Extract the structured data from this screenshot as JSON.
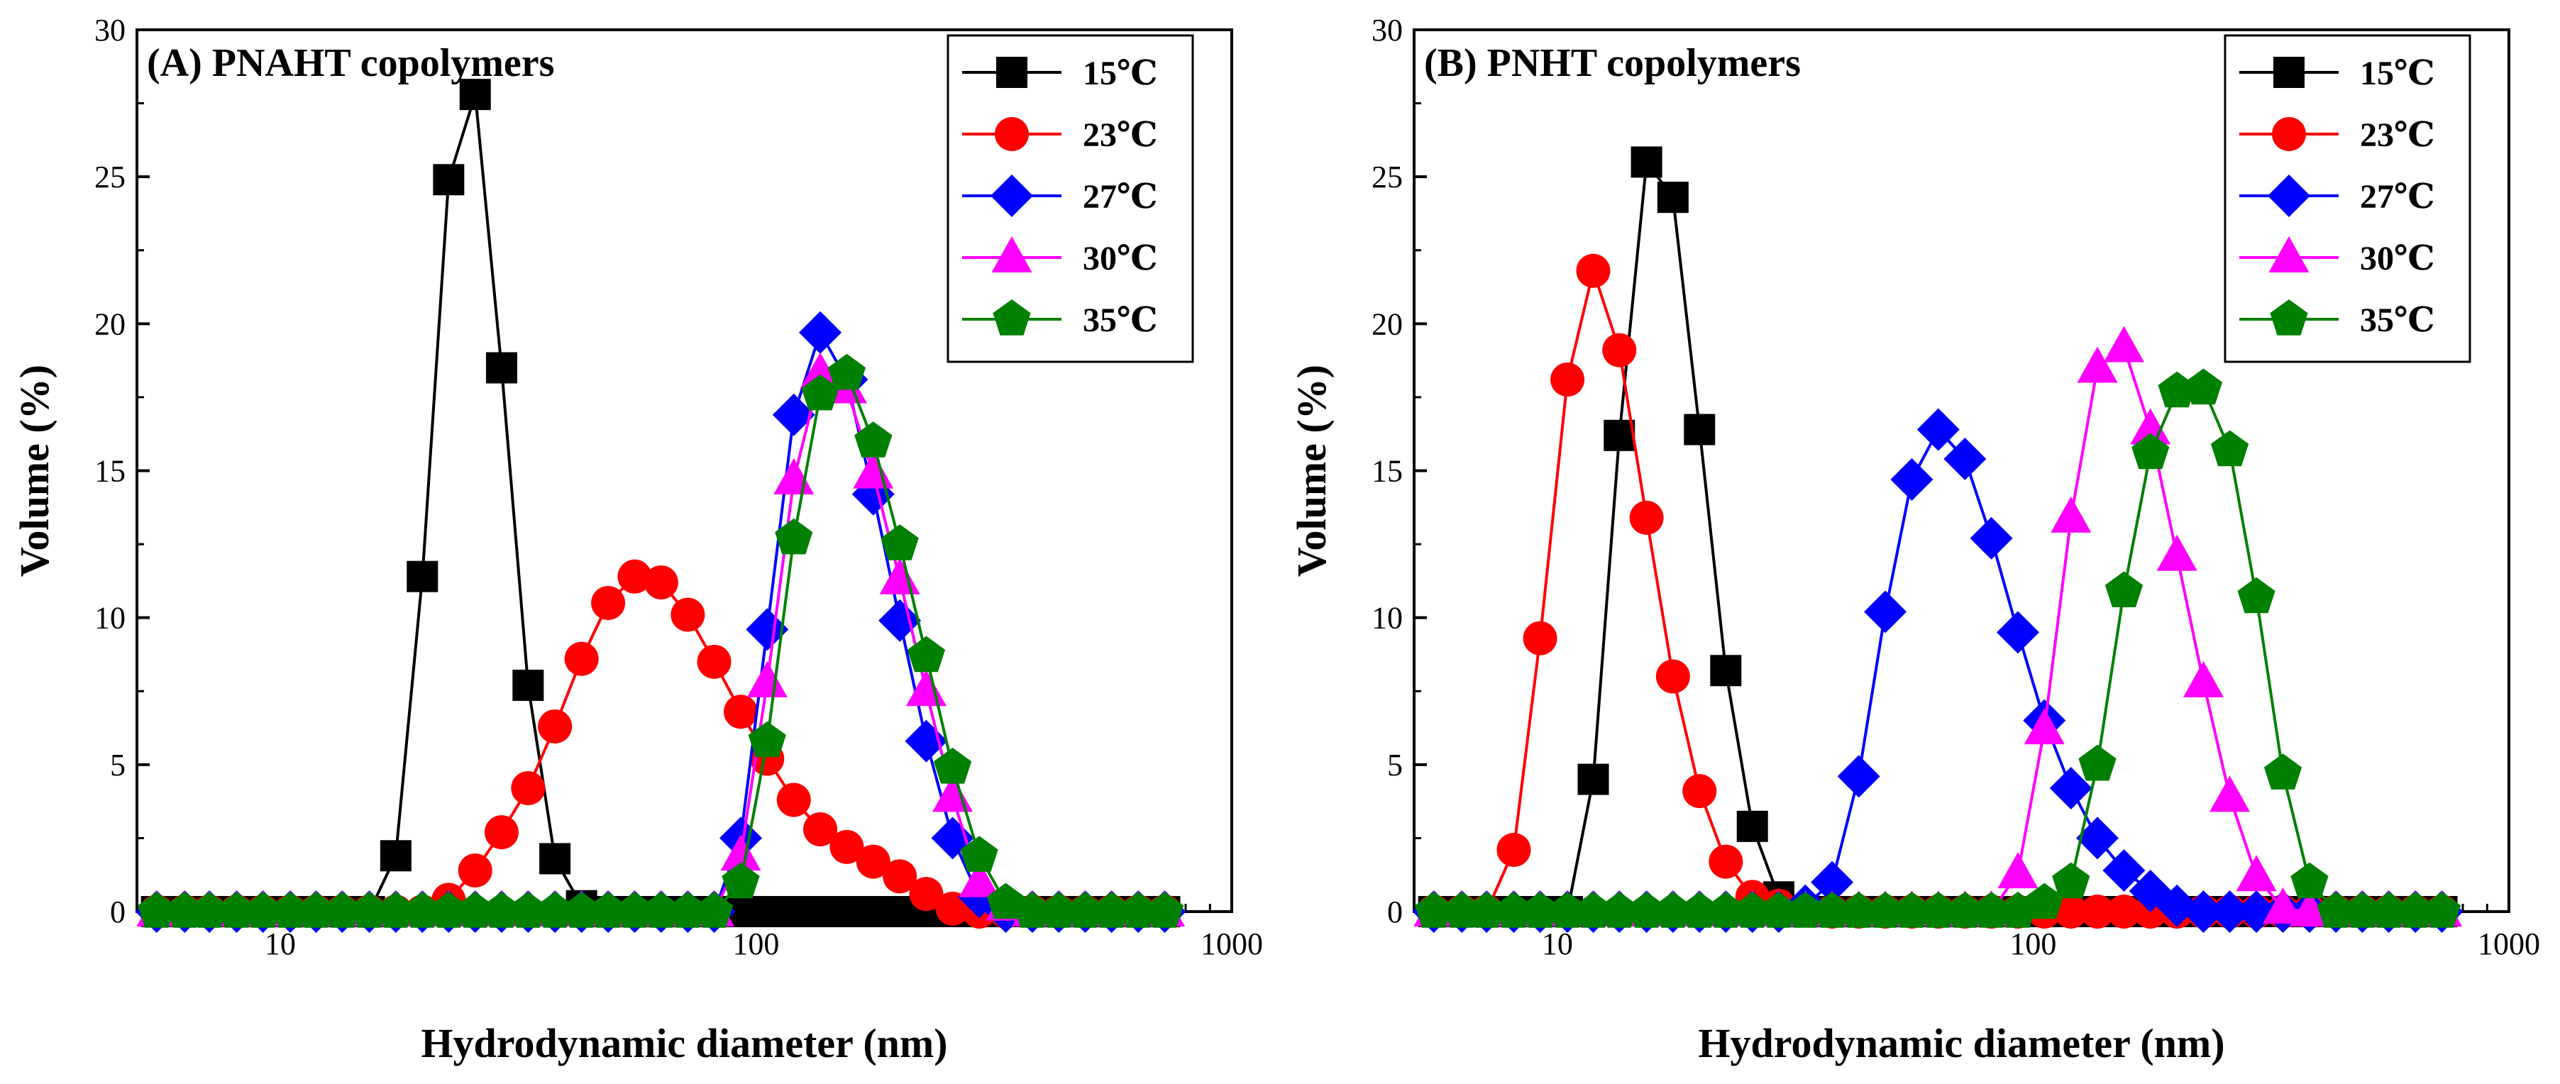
{
  "chart_data": [
    {
      "type": "line",
      "title": "(A) PNAHT copolymers",
      "xlabel": "Hydrodynamic diameter (nm)",
      "ylabel": "Volume (%)",
      "xscale": "log",
      "xlim": [
        5,
        1000
      ],
      "ylim": [
        0,
        30
      ],
      "xticks": [
        "10",
        "100",
        "1000"
      ],
      "yticks": [
        "0",
        "5",
        "10",
        "15",
        "20",
        "25",
        "30"
      ],
      "legend_position": "top-right",
      "series": [
        {
          "name": "15℃",
          "color": "#000000",
          "marker": "square",
          "x": [
            5.5,
            6.3,
            7.1,
            8.1,
            9.2,
            10.5,
            11.9,
            13.5,
            15.4,
            17.5,
            19.9,
            22.6,
            25.7,
            29.2,
            33.2,
            37.8,
            43,
            48.9,
            55.6,
            63.2,
            71.9,
            81.7,
            92.9,
            105.6,
            120.1,
            136.5,
            155.2,
            176.4,
            200.6,
            228,
            259,
            294.6,
            335,
            381,
            433,
            492,
            559,
            636,
            723
          ],
          "y": [
            0,
            0,
            0,
            0,
            0,
            0,
            0,
            0,
            0,
            1.9,
            11.4,
            24.9,
            27.8,
            18.5,
            7.7,
            1.8,
            0.2,
            0,
            0,
            0,
            0,
            0,
            0,
            0,
            0,
            0,
            0,
            0,
            0,
            0,
            0,
            0,
            0,
            0,
            0,
            0,
            0,
            0,
            0
          ]
        },
        {
          "name": "23℃",
          "color": "#ff0000",
          "marker": "circle",
          "x": [
            5.5,
            6.3,
            7.1,
            8.1,
            9.2,
            10.5,
            11.9,
            13.5,
            15.4,
            17.5,
            19.9,
            22.6,
            25.7,
            29.2,
            33.2,
            37.8,
            43,
            48.9,
            55.6,
            63.2,
            71.9,
            81.7,
            92.9,
            105.6,
            120.1,
            136.5,
            155.2,
            176.4,
            200.6,
            228,
            259,
            294.6,
            335,
            381,
            433,
            492,
            559,
            636,
            723
          ],
          "y": [
            0,
            0,
            0,
            0,
            0,
            0,
            0,
            0,
            0,
            0,
            0,
            0.4,
            1.4,
            2.7,
            4.2,
            6.3,
            8.6,
            10.5,
            11.4,
            11.2,
            10.1,
            8.5,
            6.8,
            5.2,
            3.8,
            2.8,
            2.2,
            1.7,
            1.2,
            0.6,
            0.1,
            0,
            0,
            0,
            0,
            0,
            0,
            0,
            0
          ]
        },
        {
          "name": "27℃",
          "color": "#0000ff",
          "marker": "diamond",
          "x": [
            5.5,
            6.3,
            7.1,
            8.1,
            9.2,
            10.5,
            11.9,
            13.5,
            15.4,
            17.5,
            19.9,
            22.6,
            25.7,
            29.2,
            33.2,
            37.8,
            43,
            48.9,
            55.6,
            63.2,
            71.9,
            81.7,
            92.9,
            105.6,
            120.1,
            136.5,
            155.2,
            176.4,
            200.6,
            228,
            259,
            294.6,
            335,
            381,
            433,
            492,
            559,
            636,
            723
          ],
          "y": [
            0,
            0,
            0,
            0,
            0,
            0,
            0,
            0,
            0,
            0,
            0,
            0,
            0,
            0,
            0,
            0,
            0,
            0,
            0,
            0,
            0,
            0,
            2.5,
            9.6,
            16.9,
            19.7,
            18.1,
            14.2,
            9.9,
            5.8,
            2.5,
            0.5,
            0,
            0,
            0,
            0,
            0,
            0,
            0
          ]
        },
        {
          "name": "30℃",
          "color": "#ff00ff",
          "marker": "triangle",
          "x": [
            5.5,
            6.3,
            7.1,
            8.1,
            9.2,
            10.5,
            11.9,
            13.5,
            15.4,
            17.5,
            19.9,
            22.6,
            25.7,
            29.2,
            33.2,
            37.8,
            43,
            48.9,
            55.6,
            63.2,
            71.9,
            81.7,
            92.9,
            105.6,
            120.1,
            136.5,
            155.2,
            176.4,
            200.6,
            228,
            259,
            294.6,
            335,
            381,
            433,
            492,
            559,
            636,
            723
          ],
          "y": [
            0,
            0,
            0,
            0,
            0,
            0,
            0,
            0,
            0,
            0,
            0,
            0,
            0,
            0,
            0,
            0,
            0,
            0,
            0,
            0,
            0,
            0,
            1.9,
            7.8,
            14.7,
            18.3,
            17.8,
            14.9,
            11.3,
            7.5,
            3.9,
            1,
            0.2,
            0,
            0,
            0,
            0,
            0,
            0
          ]
        },
        {
          "name": "35℃",
          "color": "#008000",
          "marker": "pentagon",
          "x": [
            5.5,
            6.3,
            7.1,
            8.1,
            9.2,
            10.5,
            11.9,
            13.5,
            15.4,
            17.5,
            19.9,
            22.6,
            25.7,
            29.2,
            33.2,
            37.8,
            43,
            48.9,
            55.6,
            63.2,
            71.9,
            81.7,
            92.9,
            105.6,
            120.1,
            136.5,
            155.2,
            176.4,
            200.6,
            228,
            259,
            294.6,
            335,
            381,
            433,
            492,
            559,
            636,
            723
          ],
          "y": [
            0,
            0,
            0,
            0,
            0,
            0,
            0,
            0,
            0,
            0,
            0,
            0,
            0,
            0,
            0,
            0,
            0,
            0,
            0,
            0,
            0,
            0,
            1,
            5.8,
            12.7,
            17.6,
            18.3,
            16,
            12.5,
            8.7,
            4.9,
            1.9,
            0.3,
            0,
            0,
            0,
            0,
            0,
            0
          ]
        }
      ]
    },
    {
      "type": "line",
      "title": "(B) PNHT copolymers",
      "xlabel": "Hydrodynamic diameter (nm)",
      "ylabel": "Volume (%)",
      "xscale": "log",
      "xlim": [
        5,
        1000
      ],
      "ylim": [
        0,
        30
      ],
      "xticks": [
        "10",
        "100",
        "1000"
      ],
      "yticks": [
        "0",
        "5",
        "10",
        "15",
        "20",
        "25",
        "30"
      ],
      "legend_position": "top-right",
      "series": [
        {
          "name": "15℃",
          "color": "#000000",
          "marker": "square",
          "x": [
            5.5,
            6.3,
            7.1,
            8.1,
            9.2,
            10.5,
            11.9,
            13.5,
            15.4,
            17.5,
            19.9,
            22.6,
            25.7,
            29.2,
            33.2,
            37.8,
            43,
            48.9,
            55.6,
            63.2,
            71.9,
            81.7,
            92.9,
            105.6,
            120.1,
            136.5,
            155.2,
            176.4,
            200.6,
            228,
            259,
            294.6,
            335,
            381,
            433,
            492,
            559,
            636,
            723
          ],
          "y": [
            0,
            0,
            0,
            0,
            0,
            0,
            4.5,
            16.2,
            25.5,
            24.3,
            16.4,
            8.2,
            2.9,
            0.5,
            0,
            0,
            0,
            0,
            0,
            0,
            0,
            0,
            0,
            0,
            0,
            0,
            0,
            0,
            0,
            0,
            0,
            0,
            0,
            0,
            0,
            0,
            0,
            0,
            0
          ]
        },
        {
          "name": "23℃",
          "color": "#ff0000",
          "marker": "circle",
          "x": [
            5.5,
            6.3,
            7.1,
            8.1,
            9.2,
            10.5,
            11.9,
            13.5,
            15.4,
            17.5,
            19.9,
            22.6,
            25.7,
            29.2,
            33.2,
            37.8,
            43,
            48.9,
            55.6,
            63.2,
            71.9,
            81.7,
            92.9,
            105.6,
            120.1,
            136.5,
            155.2,
            176.4,
            200.6,
            228,
            259,
            294.6,
            335,
            381,
            433,
            492,
            559,
            636,
            723
          ],
          "y": [
            0,
            0,
            0,
            2.1,
            9.3,
            18.1,
            21.8,
            19.1,
            13.4,
            8,
            4.1,
            1.7,
            0.5,
            0.2,
            0.1,
            0,
            0,
            0,
            0,
            0,
            0,
            0,
            0,
            0,
            0,
            0,
            0,
            0,
            0,
            0,
            0,
            0,
            0,
            0,
            0,
            0,
            0,
            0,
            0
          ]
        },
        {
          "name": "27℃",
          "color": "#0000ff",
          "marker": "diamond",
          "x": [
            5.5,
            6.3,
            7.1,
            8.1,
            9.2,
            10.5,
            11.9,
            13.5,
            15.4,
            17.5,
            19.9,
            22.6,
            25.7,
            29.2,
            33.2,
            37.8,
            43,
            48.9,
            55.6,
            63.2,
            71.9,
            81.7,
            92.9,
            105.6,
            120.1,
            136.5,
            155.2,
            176.4,
            200.6,
            228,
            259,
            294.6,
            335,
            381,
            433,
            492,
            559,
            636,
            723
          ],
          "y": [
            0,
            0,
            0,
            0,
            0,
            0,
            0,
            0,
            0,
            0,
            0,
            0,
            0,
            0,
            0.2,
            1,
            4.6,
            10.2,
            14.7,
            16.4,
            15.4,
            12.7,
            9.5,
            6.5,
            4.2,
            2.5,
            1.4,
            0.7,
            0.2,
            0,
            0,
            0,
            0,
            0,
            0,
            0,
            0,
            0,
            0
          ]
        },
        {
          "name": "30℃",
          "color": "#ff00ff",
          "marker": "triangle",
          "x": [
            5.5,
            6.3,
            7.1,
            8.1,
            9.2,
            10.5,
            11.9,
            13.5,
            15.4,
            17.5,
            19.9,
            22.6,
            25.7,
            29.2,
            33.2,
            37.8,
            43,
            48.9,
            55.6,
            63.2,
            71.9,
            81.7,
            92.9,
            105.6,
            120.1,
            136.5,
            155.2,
            176.4,
            200.6,
            228,
            259,
            294.6,
            335,
            381,
            433,
            492,
            559,
            636,
            723
          ],
          "y": [
            0,
            0,
            0,
            0,
            0,
            0,
            0,
            0,
            0,
            0,
            0,
            0,
            0,
            0,
            0,
            0,
            0,
            0,
            0,
            0,
            0,
            0,
            1.3,
            6.2,
            13.4,
            18.5,
            19.2,
            16.4,
            12.1,
            7.8,
            3.9,
            1.2,
            0.1,
            0,
            0,
            0,
            0,
            0,
            0
          ]
        },
        {
          "name": "35℃",
          "color": "#008000",
          "marker": "pentagon",
          "x": [
            5.5,
            6.3,
            7.1,
            8.1,
            9.2,
            10.5,
            11.9,
            13.5,
            15.4,
            17.5,
            19.9,
            22.6,
            25.7,
            29.2,
            33.2,
            37.8,
            43,
            48.9,
            55.6,
            63.2,
            71.9,
            81.7,
            92.9,
            105.6,
            120.1,
            136.5,
            155.2,
            176.4,
            200.6,
            228,
            259,
            294.6,
            335,
            381,
            433,
            492,
            559,
            636,
            723
          ],
          "y": [
            0,
            0,
            0,
            0,
            0,
            0,
            0,
            0,
            0,
            0,
            0,
            0,
            0,
            0,
            0,
            0,
            0,
            0,
            0,
            0,
            0,
            0,
            0,
            0.3,
            1,
            5,
            10.9,
            15.6,
            17.7,
            17.8,
            15.7,
            10.7,
            4.7,
            1,
            0,
            0,
            0,
            0,
            0
          ]
        }
      ]
    }
  ]
}
